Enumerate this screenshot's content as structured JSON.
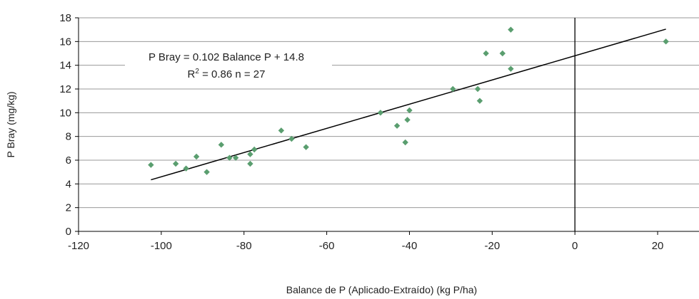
{
  "chart_data": {
    "type": "scatter",
    "title": "",
    "xlabel": "Balance de P (Aplicado-Extraído) (kg P/ha)",
    "ylabel": "P Bray (mg/kg)",
    "xlim": [
      -120,
      30
    ],
    "ylim": [
      0,
      18
    ],
    "x_ticks": [
      -120,
      -100,
      -80,
      -60,
      -40,
      -20,
      0,
      20
    ],
    "y_ticks": [
      0,
      2,
      4,
      6,
      8,
      10,
      12,
      14,
      16,
      18
    ],
    "x_tick_labels": [
      "-120",
      "-100",
      "-80",
      "-60",
      "-40",
      "-20",
      "0",
      "20"
    ],
    "y_tick_labels": [
      "0",
      "2",
      "4",
      "6",
      "8",
      "10",
      "12",
      "14",
      "16",
      "18"
    ],
    "grid": "horizontal",
    "marker": "diamond",
    "marker_color": "#5a9e6f",
    "points": [
      {
        "x": -102.5,
        "y": 5.6
      },
      {
        "x": -96.5,
        "y": 5.7
      },
      {
        "x": -94.0,
        "y": 5.3
      },
      {
        "x": -91.5,
        "y": 6.3
      },
      {
        "x": -89.0,
        "y": 5.0
      },
      {
        "x": -85.5,
        "y": 7.3
      },
      {
        "x": -83.5,
        "y": 6.2
      },
      {
        "x": -82.0,
        "y": 6.2
      },
      {
        "x": -78.5,
        "y": 6.5
      },
      {
        "x": -78.5,
        "y": 5.7
      },
      {
        "x": -77.5,
        "y": 6.9
      },
      {
        "x": -71.0,
        "y": 8.5
      },
      {
        "x": -68.5,
        "y": 7.8
      },
      {
        "x": -65.0,
        "y": 7.1
      },
      {
        "x": -47.0,
        "y": 10.0
      },
      {
        "x": -43.0,
        "y": 8.9
      },
      {
        "x": -41.0,
        "y": 7.5
      },
      {
        "x": -40.5,
        "y": 9.4
      },
      {
        "x": -40.0,
        "y": 10.2
      },
      {
        "x": -29.5,
        "y": 12.0
      },
      {
        "x": -23.5,
        "y": 12.0
      },
      {
        "x": -23.0,
        "y": 11.0
      },
      {
        "x": -21.5,
        "y": 15.0
      },
      {
        "x": -17.5,
        "y": 15.0
      },
      {
        "x": -15.5,
        "y": 17.0
      },
      {
        "x": -15.5,
        "y": 13.7
      },
      {
        "x": 22.0,
        "y": 16.0
      }
    ],
    "trendline": {
      "slope": 0.102,
      "intercept": 14.8,
      "x_start": -102.5,
      "x_end": 22.0,
      "color": "#000000"
    },
    "vertical_reference_line_x": 0,
    "annotation": {
      "line1": "P Bray = 0.102 Balance P + 14.8",
      "line2_prefix": "R",
      "line2_sup": "2",
      "line2_suffix": " = 0.86 n = 27"
    }
  }
}
